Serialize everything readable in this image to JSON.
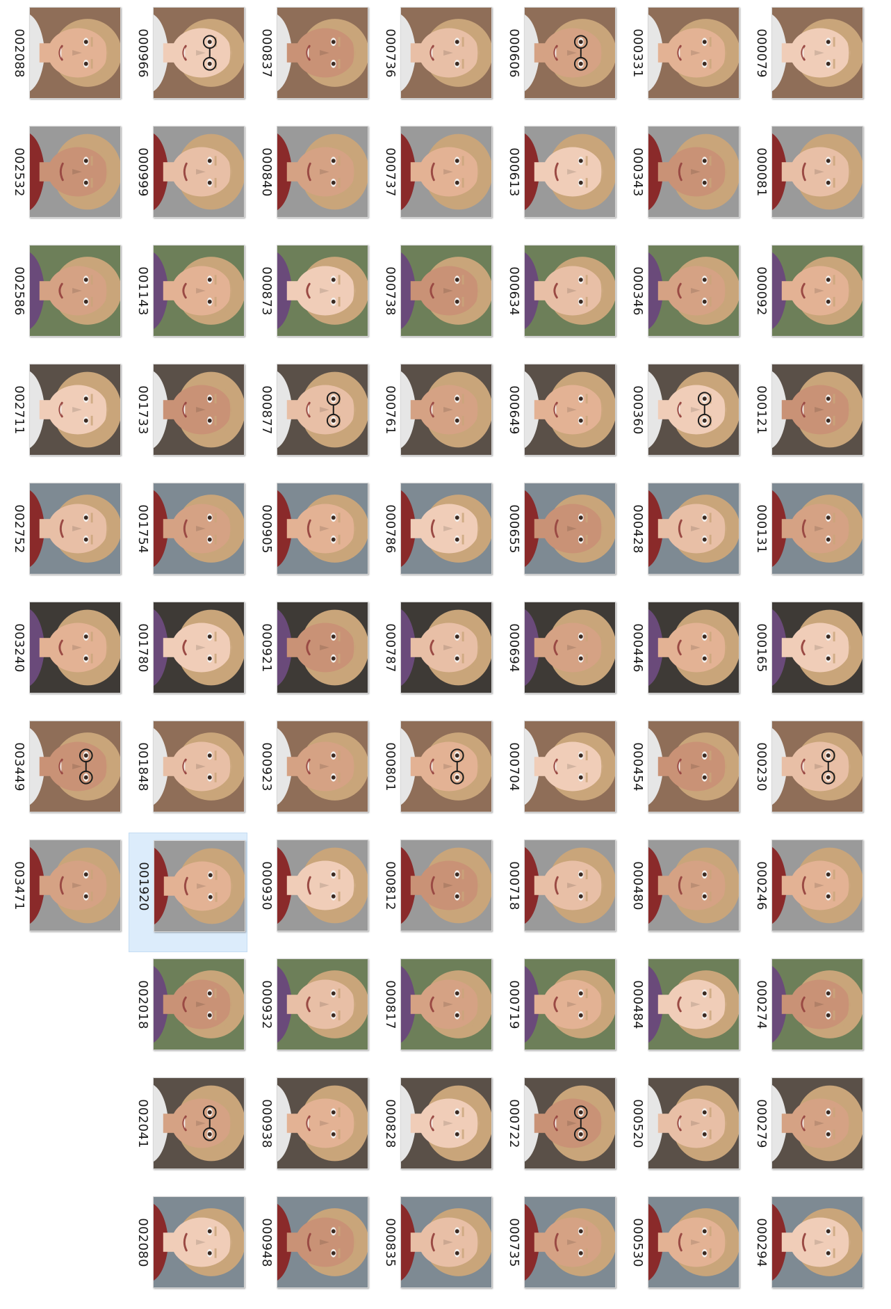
{
  "explorer": {
    "selected_file": "001920",
    "columns": [
      [
        "000079",
        "000081",
        "000092",
        "000121",
        "000131",
        "000165",
        "000230",
        "000246",
        "000274",
        "000279",
        "000294"
      ],
      [
        "000331",
        "000343",
        "000346",
        "000360",
        "000428",
        "000446",
        "000454",
        "000480",
        "000484",
        "000520",
        "000530"
      ],
      [
        "000606",
        "000613",
        "000634",
        "000649",
        "000655",
        "000694",
        "000704",
        "000718",
        "000719",
        "000722",
        "000735"
      ],
      [
        "000736",
        "000737",
        "000738",
        "000761",
        "000786",
        "000787",
        "000801",
        "000812",
        "000817",
        "000828",
        "000835"
      ],
      [
        "000837",
        "000840",
        "000873",
        "000877",
        "000905",
        "000921",
        "000923",
        "000930",
        "000932",
        "000938",
        "000948"
      ],
      [
        "000966",
        "000999",
        "001143",
        "001733",
        "001754",
        "001780",
        "001848",
        "001920",
        "002018",
        "002041",
        "002080"
      ],
      [
        "002088",
        "002532",
        "002586",
        "002711",
        "002752",
        "003240",
        "003449",
        "003471"
      ]
    ]
  },
  "palette": {
    "skin": [
      "#e8bfa6",
      "#d9a98c",
      "#c99276",
      "#b87b5e",
      "#f0cdb8",
      "#a66a4c",
      "#e3b294",
      "#6b4330",
      "#d5a284",
      "#efc9ae"
    ],
    "hair": [
      "#3a2a20",
      "#5b3b26",
      "#1e1714",
      "#8a5a36",
      "#b88b5a",
      "#6e4a32",
      "#2b221d",
      "#c9a57a",
      "#4a3a30",
      "#7a7a7a"
    ],
    "bg": [
      "#9a9a9a",
      "#c7c2b8",
      "#6d7f59",
      "#b9a58a",
      "#5a5048",
      "#d8d8d8",
      "#7e8a93",
      "#a89070",
      "#3e3a36",
      "#cfd6c2",
      "#8f6e58",
      "#2f4a7a"
    ],
    "shirt": [
      "#2d3b55",
      "#8a2a2a",
      "#3c3c3c",
      "#e6e6e6",
      "#5a6a3a",
      "#6a4a7a"
    ],
    "selection_bg": "#dcecfb",
    "selection_border": "#c4dcf3",
    "caption_color": "#1a1a1a"
  }
}
